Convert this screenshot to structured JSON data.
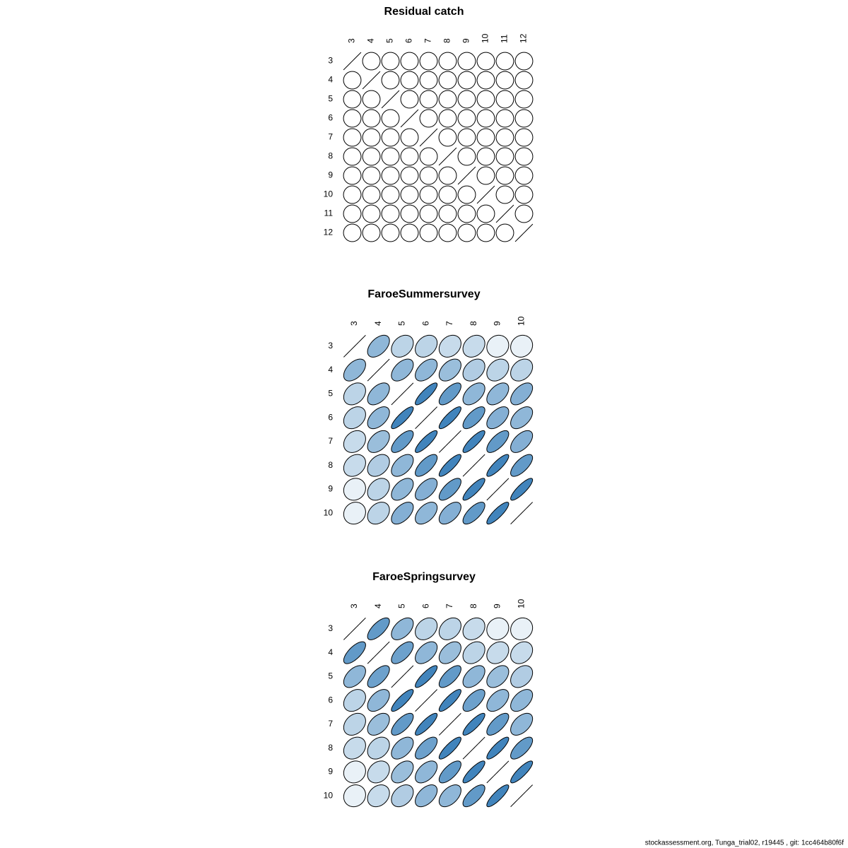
{
  "chart_data": [
    {
      "type": "corrplot",
      "title": "Residual catch",
      "categories": [
        "3",
        "4",
        "5",
        "6",
        "7",
        "8",
        "9",
        "10",
        "11",
        "12"
      ],
      "color_scale": [
        "#ffffff",
        "#1f6eb0"
      ],
      "values": [
        [
          1,
          0,
          0,
          0,
          0,
          0,
          0,
          0,
          0,
          0
        ],
        [
          0,
          1,
          0,
          0,
          0,
          0,
          0,
          0,
          0,
          0
        ],
        [
          0,
          0,
          1,
          0,
          0,
          0,
          0,
          0,
          0,
          0
        ],
        [
          0,
          0,
          0,
          1,
          0,
          0,
          0,
          0,
          0,
          0
        ],
        [
          0,
          0,
          0,
          0,
          1,
          0,
          0,
          0,
          0,
          0
        ],
        [
          0,
          0,
          0,
          0,
          0,
          1,
          0,
          0,
          0,
          0
        ],
        [
          0,
          0,
          0,
          0,
          0,
          0,
          1,
          0,
          0,
          0
        ],
        [
          0,
          0,
          0,
          0,
          0,
          0,
          0,
          1,
          0,
          0
        ],
        [
          0,
          0,
          0,
          0,
          0,
          0,
          0,
          0,
          1,
          0
        ],
        [
          0,
          0,
          0,
          0,
          0,
          0,
          0,
          0,
          0,
          1
        ]
      ]
    },
    {
      "type": "corrplot",
      "title": "FaroeSummersurvey",
      "categories": [
        "3",
        "4",
        "5",
        "6",
        "7",
        "8",
        "9",
        "10"
      ],
      "color_scale": [
        "#ffffff",
        "#1f6eb0"
      ],
      "values": [
        [
          1,
          0.5,
          0.3,
          0.3,
          0.25,
          0.25,
          0.1,
          0.1
        ],
        [
          0.5,
          1,
          0.5,
          0.5,
          0.45,
          0.35,
          0.3,
          0.3
        ],
        [
          0.3,
          0.5,
          1,
          0.85,
          0.7,
          0.5,
          0.5,
          0.55
        ],
        [
          0.3,
          0.5,
          0.85,
          1,
          0.85,
          0.7,
          0.55,
          0.5
        ],
        [
          0.25,
          0.45,
          0.7,
          0.85,
          1,
          0.85,
          0.7,
          0.55
        ],
        [
          0.25,
          0.35,
          0.5,
          0.7,
          0.85,
          1,
          0.85,
          0.7
        ],
        [
          0.1,
          0.3,
          0.5,
          0.55,
          0.7,
          0.85,
          1,
          0.85
        ],
        [
          0.1,
          0.3,
          0.55,
          0.5,
          0.55,
          0.7,
          0.85,
          1
        ]
      ]
    },
    {
      "type": "corrplot",
      "title": "FaroeSpringsurvey",
      "categories": [
        "3",
        "4",
        "5",
        "6",
        "7",
        "8",
        "9",
        "10"
      ],
      "color_scale": [
        "#ffffff",
        "#1f6eb0"
      ],
      "values": [
        [
          1,
          0.7,
          0.5,
          0.3,
          0.3,
          0.25,
          0.1,
          0.1
        ],
        [
          0.7,
          1,
          0.65,
          0.5,
          0.45,
          0.3,
          0.25,
          0.25
        ],
        [
          0.5,
          0.65,
          1,
          0.85,
          0.7,
          0.5,
          0.45,
          0.35
        ],
        [
          0.3,
          0.5,
          0.85,
          1,
          0.85,
          0.65,
          0.5,
          0.5
        ],
        [
          0.3,
          0.45,
          0.7,
          0.85,
          1,
          0.85,
          0.7,
          0.5
        ],
        [
          0.25,
          0.3,
          0.5,
          0.65,
          0.85,
          1,
          0.85,
          0.7
        ],
        [
          0.1,
          0.25,
          0.45,
          0.5,
          0.7,
          0.85,
          1,
          0.85
        ],
        [
          0.1,
          0.25,
          0.35,
          0.5,
          0.5,
          0.7,
          0.85,
          1
        ]
      ]
    }
  ],
  "footer": "stockassessment.org, Tunga_trial02, r19445 , git: 1cc464b80f6f"
}
